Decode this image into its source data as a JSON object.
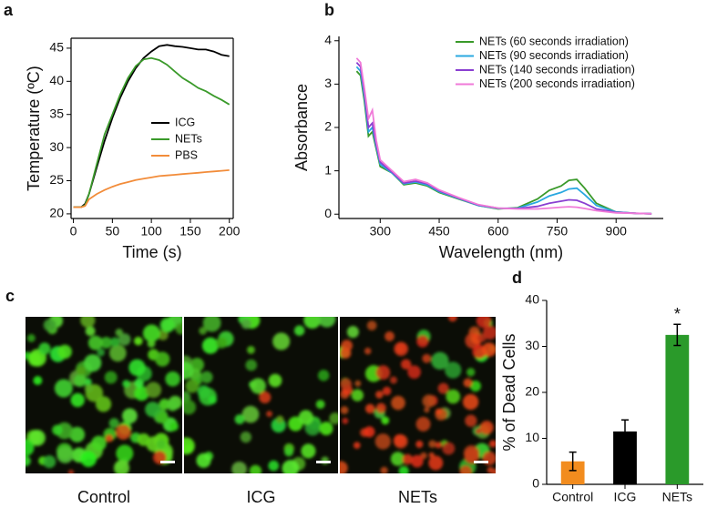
{
  "chart_data": [
    {
      "type": "line",
      "panel": "a",
      "xlabel": "Time (s)",
      "ylabel": "Temperature (ºC)",
      "x": [
        0,
        10,
        15,
        20,
        30,
        40,
        50,
        60,
        70,
        80,
        90,
        100,
        110,
        120,
        130,
        140,
        150,
        160,
        170,
        180,
        190,
        200
      ],
      "series": [
        {
          "name": "ICG",
          "color": "#000000",
          "values": [
            21,
            21,
            21.5,
            23,
            27,
            31,
            34.5,
            37.5,
            40,
            42,
            43.5,
            44.5,
            45.3,
            45.5,
            45.3,
            45.2,
            45,
            44.8,
            44.8,
            44.5,
            44,
            43.8
          ]
        },
        {
          "name": "NETs",
          "color": "#3a9a2a",
          "values": [
            21,
            21,
            21.3,
            23,
            27.5,
            32,
            35,
            38,
            40.5,
            42.3,
            43.3,
            43.5,
            43.2,
            42.5,
            41.5,
            40.5,
            39.8,
            39,
            38.5,
            37.8,
            37.2,
            36.5
          ]
        },
        {
          "name": "PBS",
          "color": "#f28c3a",
          "values": [
            21,
            21,
            21.2,
            22.2,
            23,
            23.6,
            24.1,
            24.5,
            24.8,
            25.1,
            25.3,
            25.5,
            25.7,
            25.8,
            25.9,
            26,
            26.1,
            26.2,
            26.3,
            26.4,
            26.5,
            26.6
          ]
        }
      ],
      "xlim": [
        -3,
        205
      ],
      "xticks": [
        0,
        50,
        100,
        150,
        200
      ],
      "ylim": [
        19.3,
        46.5
      ],
      "yticks": [
        20,
        25,
        30,
        35,
        40,
        45
      ],
      "legend": "lower right",
      "frame": "box"
    },
    {
      "type": "line",
      "panel": "b",
      "xlabel": "Wavelength (nm)",
      "ylabel": "Absorbance",
      "x": [
        240,
        250,
        260,
        270,
        280,
        290,
        300,
        330,
        360,
        390,
        420,
        450,
        500,
        550,
        600,
        650,
        700,
        730,
        760,
        780,
        800,
        820,
        850,
        900,
        950,
        990
      ],
      "series": [
        {
          "name": "NETs (60 seconds irradiation)",
          "color": "#3a9a2a",
          "values": [
            3.3,
            3.2,
            2.6,
            1.8,
            1.9,
            1.5,
            1.1,
            0.95,
            0.68,
            0.72,
            0.65,
            0.5,
            0.35,
            0.2,
            0.12,
            0.15,
            0.35,
            0.55,
            0.65,
            0.78,
            0.8,
            0.6,
            0.25,
            0.05,
            0.02,
            0.01
          ]
        },
        {
          "name": "NETs (90 seconds irradiation)",
          "color": "#2aa8e0",
          "values": [
            3.4,
            3.3,
            2.7,
            1.9,
            2.0,
            1.55,
            1.15,
            0.95,
            0.7,
            0.74,
            0.67,
            0.52,
            0.36,
            0.2,
            0.13,
            0.14,
            0.28,
            0.42,
            0.5,
            0.58,
            0.6,
            0.45,
            0.2,
            0.05,
            0.02,
            0.01
          ]
        },
        {
          "name": "NETs (140 seconds irradiation)",
          "color": "#8a3fd1",
          "values": [
            3.5,
            3.4,
            2.8,
            2.0,
            2.1,
            1.6,
            1.2,
            0.97,
            0.72,
            0.76,
            0.7,
            0.54,
            0.37,
            0.21,
            0.14,
            0.13,
            0.18,
            0.25,
            0.3,
            0.33,
            0.32,
            0.25,
            0.12,
            0.04,
            0.02,
            0.01
          ]
        },
        {
          "name": "NETs (200 seconds irradiation)",
          "color": "#f07ad8",
          "values": [
            3.6,
            3.5,
            2.9,
            2.2,
            2.4,
            1.7,
            1.25,
            1.0,
            0.75,
            0.8,
            0.72,
            0.56,
            0.38,
            0.22,
            0.14,
            0.12,
            0.12,
            0.14,
            0.16,
            0.17,
            0.16,
            0.13,
            0.08,
            0.03,
            0.02,
            0.01
          ]
        }
      ],
      "xlim": [
        195,
        1020
      ],
      "xticks": [
        300,
        450,
        600,
        750,
        900
      ],
      "ylim": [
        -0.1,
        4.1
      ],
      "yticks": [
        0,
        1,
        2,
        3,
        4
      ],
      "legend": "upper right",
      "frame": "open"
    },
    {
      "type": "bar",
      "panel": "d",
      "ylabel": "% of Dead Cells",
      "categories": [
        "Control",
        "ICG",
        "NETs"
      ],
      "values": [
        5,
        11.5,
        32.5
      ],
      "errors": [
        2,
        2.5,
        2.3
      ],
      "colors": [
        "#f28c1e",
        "#000000",
        "#2a9a2a"
      ],
      "ylim": [
        0,
        40
      ],
      "yticks": [
        0,
        10,
        20,
        30,
        40
      ],
      "annotations": [
        {
          "text": "*",
          "x": "NETs"
        }
      ],
      "frame": "open"
    }
  ],
  "images": {
    "panel": "c",
    "captions": [
      "Control",
      "ICG",
      "NETs"
    ]
  }
}
